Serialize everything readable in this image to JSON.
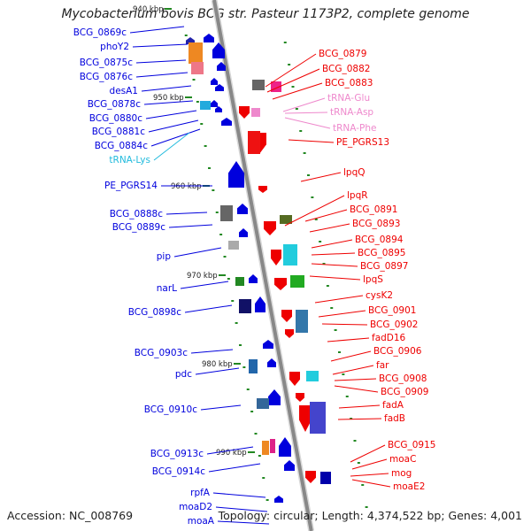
{
  "title": "Mycobacterium bovis BCG str. Pasteur 1173P2, complete genome",
  "accession": "Accession: NC_008769",
  "stats": "Topology: circular; Length: 4,374,522 bp; Genes: 4,001",
  "colors": {
    "forward": "#0000dd",
    "reverse": "#ee0000",
    "rna": "#ee88cc",
    "trna_lys": "#22bbdd",
    "backbone": "#888888",
    "tick": "#228822"
  },
  "ticks": [
    "940 kbp",
    "950 kbp",
    "960 kbp",
    "970 kbp",
    "980 kbp",
    "990 kbp"
  ],
  "left_labels": [
    {
      "text": "BCG_0869c",
      "type": "gene"
    },
    {
      "text": "phoY2",
      "type": "gene"
    },
    {
      "text": "BCG_0875c",
      "type": "gene"
    },
    {
      "text": "BCG_0876c",
      "type": "gene"
    },
    {
      "text": "desA1",
      "type": "gene"
    },
    {
      "text": "BCG_0878c",
      "type": "gene"
    },
    {
      "text": "BCG_0880c",
      "type": "gene"
    },
    {
      "text": "BCG_0881c",
      "type": "gene"
    },
    {
      "text": "BCG_0884c",
      "type": "gene"
    },
    {
      "text": "tRNA-Lys",
      "type": "trna"
    },
    {
      "text": "PE_PGRS14",
      "type": "gene"
    },
    {
      "text": "BCG_0888c",
      "type": "gene"
    },
    {
      "text": "BCG_0889c",
      "type": "gene"
    },
    {
      "text": "pip",
      "type": "gene"
    },
    {
      "text": "narL",
      "type": "gene"
    },
    {
      "text": "BCG_0898c",
      "type": "gene"
    },
    {
      "text": "BCG_0903c",
      "type": "gene"
    },
    {
      "text": "pdc",
      "type": "gene"
    },
    {
      "text": "BCG_0910c",
      "type": "gene"
    },
    {
      "text": "BCG_0913c",
      "type": "gene"
    },
    {
      "text": "BCG_0914c",
      "type": "gene"
    },
    {
      "text": "rpfA",
      "type": "gene"
    },
    {
      "text": "moaD2",
      "type": "gene"
    },
    {
      "text": "moaA",
      "type": "gene"
    }
  ],
  "right_labels": [
    {
      "text": "BCG_0879",
      "type": "gene"
    },
    {
      "text": "BCG_0882",
      "type": "gene"
    },
    {
      "text": "BCG_0883",
      "type": "gene"
    },
    {
      "text": "tRNA-Glu",
      "type": "rna"
    },
    {
      "text": "tRNA-Asp",
      "type": "rna"
    },
    {
      "text": "tRNA-Phe",
      "type": "rna"
    },
    {
      "text": "PE_PGRS13",
      "type": "gene"
    },
    {
      "text": "lpqQ",
      "type": "gene"
    },
    {
      "text": "lpqR",
      "type": "gene"
    },
    {
      "text": "BCG_0891",
      "type": "gene"
    },
    {
      "text": "BCG_0893",
      "type": "gene"
    },
    {
      "text": "BCG_0894",
      "type": "gene"
    },
    {
      "text": "BCG_0895",
      "type": "gene"
    },
    {
      "text": "BCG_0897",
      "type": "gene"
    },
    {
      "text": "lpqS",
      "type": "gene"
    },
    {
      "text": "cysK2",
      "type": "gene"
    },
    {
      "text": "BCG_0901",
      "type": "gene"
    },
    {
      "text": "BCG_0902",
      "type": "gene"
    },
    {
      "text": "fadD16",
      "type": "gene"
    },
    {
      "text": "BCG_0906",
      "type": "gene"
    },
    {
      "text": "far",
      "type": "gene"
    },
    {
      "text": "BCG_0908",
      "type": "gene"
    },
    {
      "text": "BCG_0909",
      "type": "gene"
    },
    {
      "text": "fadA",
      "type": "gene"
    },
    {
      "text": "fadB",
      "type": "gene"
    },
    {
      "text": "BCG_0915",
      "type": "gene"
    },
    {
      "text": "moaC",
      "type": "gene"
    },
    {
      "text": "mog",
      "type": "gene"
    },
    {
      "text": "moaE2",
      "type": "gene"
    }
  ]
}
